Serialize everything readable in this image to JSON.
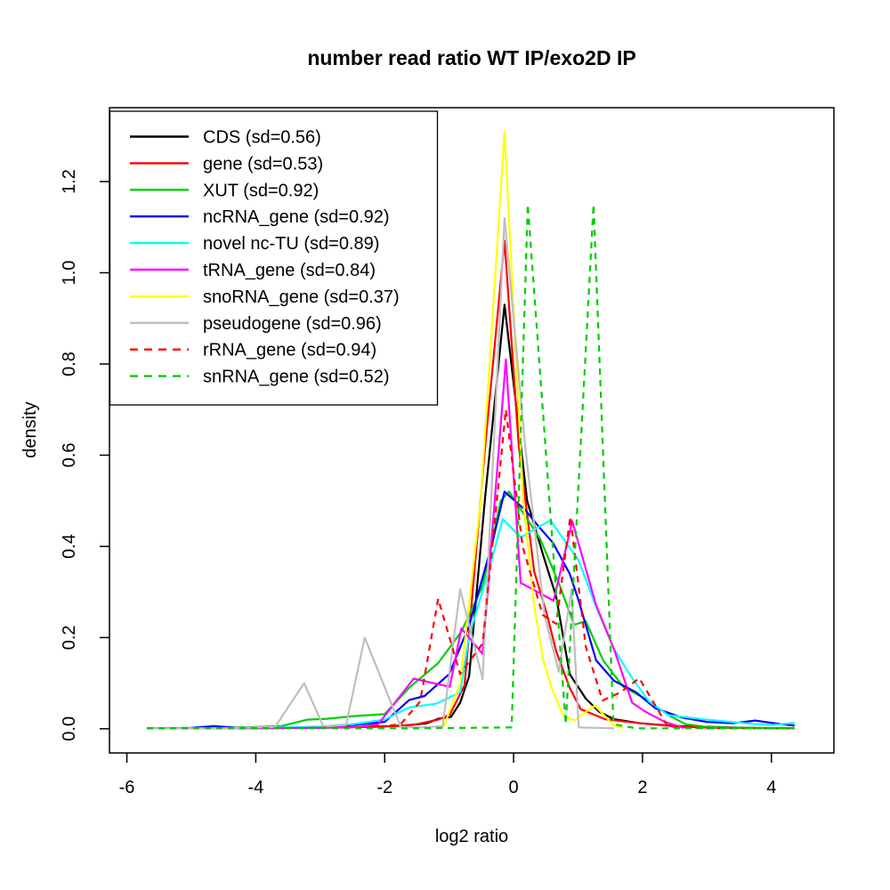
{
  "chart_data": {
    "type": "line",
    "title": "number read ratio WT IP/exo2D IP",
    "xlabel": "log2 ratio",
    "ylabel": "density",
    "xlim": [
      -6.27,
      4.97
    ],
    "ylim": [
      -0.053,
      1.362
    ],
    "grid": false,
    "legend_position": "top-left",
    "frame_color": "#000000",
    "x_ticks": [
      {
        "v": -6,
        "label": "-6"
      },
      {
        "v": -4,
        "label": "-4"
      },
      {
        "v": -2,
        "label": "-2"
      },
      {
        "v": 0,
        "label": "0"
      },
      {
        "v": 2,
        "label": "2"
      },
      {
        "v": 4,
        "label": "4"
      }
    ],
    "y_ticks": [
      {
        "v": 0.0,
        "label": "0.0"
      },
      {
        "v": 0.2,
        "label": "0.2"
      },
      {
        "v": 0.4,
        "label": "0.4"
      },
      {
        "v": 0.6,
        "label": "0.6"
      },
      {
        "v": 0.8,
        "label": "0.8"
      },
      {
        "v": 1.0,
        "label": "1.0"
      },
      {
        "v": 1.2,
        "label": "1.2"
      }
    ],
    "series": [
      {
        "name": "cds",
        "label": "CDS (sd=0.56)",
        "sd": 0.56,
        "color": "#000000",
        "line_style": "solid",
        "points": [
          [
            -5.69,
            0.001
          ],
          [
            -4.8,
            0.001
          ],
          [
            -4.0,
            0.002
          ],
          [
            -3.2,
            0.002
          ],
          [
            -2.6,
            0.003
          ],
          [
            -2.2,
            0.005
          ],
          [
            -1.9,
            0.006
          ],
          [
            -1.6,
            0.008
          ],
          [
            -1.35,
            0.012
          ],
          [
            -1.17,
            0.022
          ],
          [
            -0.97,
            0.026
          ],
          [
            -0.83,
            0.057
          ],
          [
            -0.69,
            0.115
          ],
          [
            -0.44,
            0.51
          ],
          [
            -0.14,
            0.93
          ],
          [
            0.21,
            0.5
          ],
          [
            0.46,
            0.38
          ],
          [
            0.66,
            0.29
          ],
          [
            0.87,
            0.12
          ],
          [
            1.12,
            0.066
          ],
          [
            1.33,
            0.037
          ],
          [
            1.56,
            0.021
          ],
          [
            1.97,
            0.012
          ],
          [
            2.53,
            0.006
          ],
          [
            3.1,
            0.004
          ],
          [
            3.6,
            0.002
          ],
          [
            4.36,
            0.001
          ]
        ]
      },
      {
        "name": "gene",
        "label": "gene (sd=0.53)",
        "sd": 0.53,
        "color": "#FF0000",
        "line_style": "solid",
        "points": [
          [
            -5.69,
            0.001
          ],
          [
            -4.5,
            0.001
          ],
          [
            -3.5,
            0.002
          ],
          [
            -2.8,
            0.003
          ],
          [
            -2.2,
            0.004
          ],
          [
            -1.8,
            0.006
          ],
          [
            -1.5,
            0.01
          ],
          [
            -1.17,
            0.02
          ],
          [
            -0.99,
            0.031
          ],
          [
            -0.76,
            0.096
          ],
          [
            -0.44,
            0.62
          ],
          [
            -0.14,
            1.07
          ],
          [
            0.08,
            0.62
          ],
          [
            0.32,
            0.345
          ],
          [
            0.52,
            0.25
          ],
          [
            0.66,
            0.17
          ],
          [
            0.87,
            0.09
          ],
          [
            1.04,
            0.043
          ],
          [
            1.42,
            0.021
          ],
          [
            1.97,
            0.012
          ],
          [
            2.53,
            0.005
          ],
          [
            3.1,
            0.002
          ],
          [
            4.36,
            0.001
          ]
        ]
      },
      {
        "name": "xut",
        "label": "XUT (sd=0.92)",
        "sd": 0.92,
        "color": "#00CD00",
        "line_style": "solid",
        "points": [
          [
            -5.69,
            0.001
          ],
          [
            -4.6,
            0.002
          ],
          [
            -4.0,
            0.004
          ],
          [
            -3.6,
            0.006
          ],
          [
            -3.2,
            0.02
          ],
          [
            -2.9,
            0.022
          ],
          [
            -2.45,
            0.028
          ],
          [
            -2.0,
            0.032
          ],
          [
            -1.62,
            0.09
          ],
          [
            -1.17,
            0.144
          ],
          [
            -0.81,
            0.213
          ],
          [
            -0.48,
            0.314
          ],
          [
            -0.2,
            0.5
          ],
          [
            -0.07,
            0.52
          ],
          [
            0.07,
            0.49
          ],
          [
            0.41,
            0.417
          ],
          [
            0.7,
            0.32
          ],
          [
            0.94,
            0.228
          ],
          [
            1.12,
            0.236
          ],
          [
            1.39,
            0.15
          ],
          [
            1.7,
            0.092
          ],
          [
            2.04,
            0.066
          ],
          [
            2.4,
            0.03
          ],
          [
            2.67,
            0.01
          ],
          [
            3.0,
            0.004
          ],
          [
            3.5,
            0.002
          ],
          [
            4.36,
            0.001
          ]
        ]
      },
      {
        "name": "ncrna-gene",
        "label": "ncRNA_gene (sd=0.92)",
        "sd": 0.92,
        "color": "#0000FF",
        "line_style": "solid",
        "points": [
          [
            -5.69,
            0.001
          ],
          [
            -5.0,
            0.002
          ],
          [
            -4.65,
            0.006
          ],
          [
            -4.3,
            0.002
          ],
          [
            -3.5,
            0.002
          ],
          [
            -3.0,
            0.004
          ],
          [
            -2.5,
            0.008
          ],
          [
            -2.0,
            0.015
          ],
          [
            -1.62,
            0.063
          ],
          [
            -1.38,
            0.072
          ],
          [
            -1.0,
            0.12
          ],
          [
            -0.69,
            0.226
          ],
          [
            -0.33,
            0.408
          ],
          [
            -0.14,
            0.52
          ],
          [
            0.18,
            0.48
          ],
          [
            0.41,
            0.44
          ],
          [
            0.61,
            0.408
          ],
          [
            0.87,
            0.34
          ],
          [
            1.01,
            0.281
          ],
          [
            1.28,
            0.15
          ],
          [
            1.56,
            0.105
          ],
          [
            1.9,
            0.08
          ],
          [
            2.2,
            0.045
          ],
          [
            2.6,
            0.025
          ],
          [
            3.0,
            0.015
          ],
          [
            3.4,
            0.012
          ],
          [
            3.75,
            0.018
          ],
          [
            4.05,
            0.012
          ],
          [
            4.36,
            0.007
          ]
        ]
      },
      {
        "name": "novel-nc-tu",
        "label": "novel nc-TU (sd=0.89)",
        "sd": 0.89,
        "color": "#00FFFF",
        "line_style": "solid",
        "points": [
          [
            -5.69,
            0.001
          ],
          [
            -4.5,
            0.001
          ],
          [
            -3.5,
            0.003
          ],
          [
            -3.0,
            0.005
          ],
          [
            -2.5,
            0.01
          ],
          [
            -2.0,
            0.02
          ],
          [
            -1.62,
            0.047
          ],
          [
            -1.2,
            0.055
          ],
          [
            -0.83,
            0.08
          ],
          [
            -0.69,
            0.203
          ],
          [
            -0.33,
            0.375
          ],
          [
            -0.17,
            0.46
          ],
          [
            0.11,
            0.42
          ],
          [
            0.57,
            0.457
          ],
          [
            1.01,
            0.369
          ],
          [
            1.26,
            0.275
          ],
          [
            1.56,
            0.174
          ],
          [
            1.84,
            0.111
          ],
          [
            2.1,
            0.06
          ],
          [
            2.4,
            0.03
          ],
          [
            3.0,
            0.02
          ],
          [
            3.6,
            0.012
          ],
          [
            4.0,
            0.008
          ],
          [
            4.36,
            0.013
          ]
        ]
      },
      {
        "name": "trna-gene",
        "label": "tRNA_gene (sd=0.84)",
        "sd": 0.84,
        "color": "#FF00FF",
        "line_style": "solid",
        "points": [
          [
            -5.69,
            0.001
          ],
          [
            -4.0,
            0.001
          ],
          [
            -3.0,
            0.002
          ],
          [
            -2.4,
            0.004
          ],
          [
            -2.1,
            0.01
          ],
          [
            -1.55,
            0.11
          ],
          [
            -0.99,
            0.092
          ],
          [
            -0.81,
            0.22
          ],
          [
            -0.48,
            0.164
          ],
          [
            -0.12,
            0.81
          ],
          [
            0.11,
            0.32
          ],
          [
            0.62,
            0.281
          ],
          [
            0.91,
            0.455
          ],
          [
            1.28,
            0.271
          ],
          [
            1.56,
            0.174
          ],
          [
            1.84,
            0.057
          ],
          [
            2.05,
            0.037
          ],
          [
            2.35,
            0.015
          ],
          [
            2.64,
            0.002
          ]
        ]
      },
      {
        "name": "snorna-gene",
        "label": "snoRNA_gene (sd=0.37)",
        "sd": 0.37,
        "color": "#FFFF00",
        "line_style": "solid",
        "points": [
          [
            -1.09,
            0.002
          ],
          [
            -0.83,
            0.1
          ],
          [
            -0.51,
            0.5
          ],
          [
            -0.14,
            1.31
          ],
          [
            0.15,
            0.5
          ],
          [
            0.32,
            0.27
          ],
          [
            0.46,
            0.15
          ],
          [
            0.6,
            0.086
          ],
          [
            0.77,
            0.03
          ],
          [
            0.94,
            0.018
          ],
          [
            1.26,
            0.051
          ],
          [
            1.55,
            0.008
          ],
          [
            1.7,
            0.002
          ]
        ]
      },
      {
        "name": "pseudogene",
        "label": "pseudogene (sd=0.96)",
        "sd": 0.96,
        "color": "#BEBEBE",
        "line_style": "solid",
        "points": [
          [
            -5.69,
            0.001
          ],
          [
            -4.5,
            0.001
          ],
          [
            -3.7,
            0.004
          ],
          [
            -3.25,
            0.1
          ],
          [
            -2.95,
            0.005
          ],
          [
            -2.6,
            0.008
          ],
          [
            -2.31,
            0.2
          ],
          [
            -1.75,
            0.004
          ],
          [
            -1.4,
            0.003
          ],
          [
            -1.1,
            0.006
          ],
          [
            -0.83,
            0.306
          ],
          [
            -0.48,
            0.109
          ],
          [
            -0.14,
            1.12
          ],
          [
            0.18,
            0.62
          ],
          [
            0.48,
            0.25
          ],
          [
            0.7,
            0.125
          ],
          [
            0.9,
            0.306
          ],
          [
            1.01,
            0.003
          ],
          [
            1.56,
            0.001
          ]
        ]
      },
      {
        "name": "rrna-gene",
        "label": "rRNA_gene (sd=0.94)",
        "sd": 0.94,
        "color": "#FF0000",
        "line_style": "dashed",
        "points": [
          [
            -5.69,
            0.001
          ],
          [
            -4.0,
            0.001
          ],
          [
            -3.0,
            0.002
          ],
          [
            -2.2,
            0.003
          ],
          [
            -1.75,
            0.01
          ],
          [
            -1.45,
            0.06
          ],
          [
            -1.17,
            0.285
          ],
          [
            -0.83,
            0.12
          ],
          [
            -0.48,
            0.187
          ],
          [
            -0.12,
            0.7
          ],
          [
            0.14,
            0.4
          ],
          [
            0.45,
            0.25
          ],
          [
            0.66,
            0.23
          ],
          [
            0.88,
            0.466
          ],
          [
            1.12,
            0.18
          ],
          [
            1.38,
            0.062
          ],
          [
            1.66,
            0.08
          ],
          [
            1.95,
            0.111
          ],
          [
            2.39,
            0.005
          ],
          [
            3.0,
            0.001
          ],
          [
            4.36,
            0.001
          ]
        ]
      },
      {
        "name": "snrna-gene",
        "label": "snRNA_gene (sd=0.52)",
        "sd": 0.52,
        "color": "#00CD00",
        "line_style": "dashed",
        "points": [
          [
            -5.69,
            0.001
          ],
          [
            -1.5,
            0.001
          ],
          [
            -0.03,
            0.003
          ],
          [
            0.22,
            1.15
          ],
          [
            0.81,
            0.01
          ],
          [
            1.24,
            1.15
          ],
          [
            1.55,
            0.01
          ],
          [
            1.9,
            0.001
          ],
          [
            4.36,
            0.001
          ]
        ]
      }
    ]
  }
}
